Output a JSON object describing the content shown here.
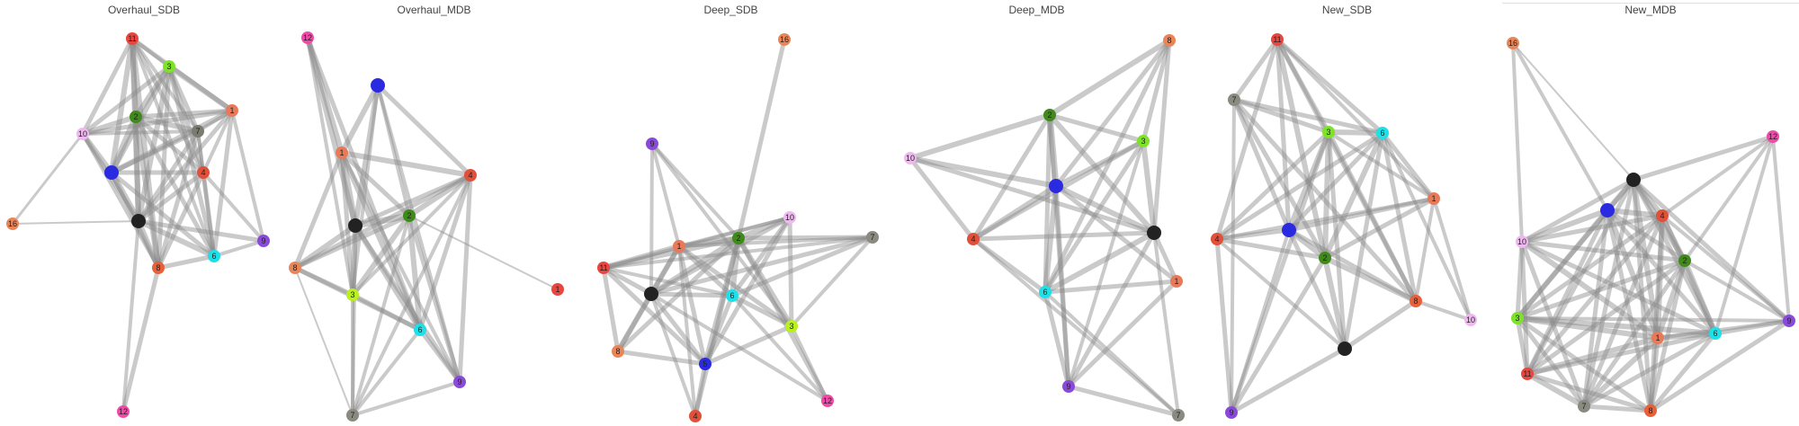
{
  "figure": {
    "panels": [
      {
        "title": "Overhaul_SDB",
        "nodes": [
          {
            "label": "11",
            "color": "#e8463f"
          },
          {
            "label": "3",
            "color": "#7fe22a"
          },
          {
            "label": "1",
            "color": "#e87a5a"
          },
          {
            "label": "2",
            "color": "#3f8a1a"
          },
          {
            "label": "7",
            "color": "#7b7b72"
          },
          {
            "label": "10",
            "color": "#f0b8f0"
          },
          {
            "label": "",
            "color": "#2a2ae0"
          },
          {
            "label": "4",
            "color": "#e0503a"
          },
          {
            "label": "16",
            "color": "#e8865a"
          },
          {
            "label": "",
            "color": "#222222"
          },
          {
            "label": "9",
            "color": "#8a4ad8"
          },
          {
            "label": "6",
            "color": "#1ee0e8"
          },
          {
            "label": "8",
            "color": "#e8603a"
          },
          {
            "label": "12",
            "color": "#f04aa8"
          }
        ]
      },
      {
        "title": "Overhaul_MDB",
        "nodes": [
          {
            "label": "12",
            "color": "#f04aa8"
          },
          {
            "label": "",
            "color": "#2a2ae0"
          },
          {
            "label": "1",
            "color": "#e87a5a"
          },
          {
            "label": "4",
            "color": "#e0503a"
          },
          {
            "label": "",
            "color": "#222222"
          },
          {
            "label": "2",
            "color": "#3f8a1a"
          },
          {
            "label": "8",
            "color": "#e8865a"
          },
          {
            "label": "3",
            "color": "#b8f020"
          },
          {
            "label": "1",
            "color": "#e8463f"
          },
          {
            "label": "6",
            "color": "#1ee0e8"
          },
          {
            "label": "9",
            "color": "#8a4ad8"
          },
          {
            "label": "7",
            "color": "#8a8a80"
          }
        ]
      },
      {
        "title": "Deep_SDB",
        "nodes": [
          {
            "label": "16",
            "color": "#e8865a"
          },
          {
            "label": "9",
            "color": "#8a4ad8"
          },
          {
            "label": "10",
            "color": "#f0b8f0"
          },
          {
            "label": "7",
            "color": "#8a8a80"
          },
          {
            "label": "1",
            "color": "#e87a5a"
          },
          {
            "label": "2",
            "color": "#3f8a1a"
          },
          {
            "label": "11",
            "color": "#e8463f"
          },
          {
            "label": "",
            "color": "#222222"
          },
          {
            "label": "6",
            "color": "#1ee0e8"
          },
          {
            "label": "3",
            "color": "#b8f020"
          },
          {
            "label": "8",
            "color": "#e8865a"
          },
          {
            "label": "5",
            "color": "#2a2ae0"
          },
          {
            "label": "12",
            "color": "#f04aa8"
          },
          {
            "label": "4",
            "color": "#e0503a"
          }
        ]
      },
      {
        "title": "Deep_MDB",
        "nodes": [
          {
            "label": "8",
            "color": "#e8865a"
          },
          {
            "label": "2",
            "color": "#3f8a1a"
          },
          {
            "label": "3",
            "color": "#7fe22a"
          },
          {
            "label": "10",
            "color": "#f0b8f0"
          },
          {
            "label": "",
            "color": "#2a2ae0"
          },
          {
            "label": "4",
            "color": "#e0503a"
          },
          {
            "label": "",
            "color": "#222222"
          },
          {
            "label": "1",
            "color": "#e87a5a"
          },
          {
            "label": "6",
            "color": "#1ee0e8"
          },
          {
            "label": "9",
            "color": "#8a4ad8"
          },
          {
            "label": "7",
            "color": "#8a8a80"
          }
        ]
      },
      {
        "title": "New_SDB",
        "nodes": [
          {
            "label": "11",
            "color": "#e8463f"
          },
          {
            "label": "7",
            "color": "#8a8a80"
          },
          {
            "label": "3",
            "color": "#7fe22a"
          },
          {
            "label": "6",
            "color": "#1ee0e8"
          },
          {
            "label": "1",
            "color": "#e87a5a"
          },
          {
            "label": "4",
            "color": "#e0503a"
          },
          {
            "label": "",
            "color": "#2a2ae0"
          },
          {
            "label": "2",
            "color": "#3f8a1a"
          },
          {
            "label": "8",
            "color": "#e8603a"
          },
          {
            "label": "10",
            "color": "#f0b8f0"
          },
          {
            "label": "",
            "color": "#222222"
          },
          {
            "label": "9",
            "color": "#8a4ad8"
          }
        ]
      },
      {
        "title": "New_MDB",
        "nodes": [
          {
            "label": "16",
            "color": "#e8865a"
          },
          {
            "label": "12",
            "color": "#f04aa8"
          },
          {
            "label": "",
            "color": "#222222"
          },
          {
            "label": "",
            "color": "#2a2ae0"
          },
          {
            "label": "4",
            "color": "#e0503a"
          },
          {
            "label": "10",
            "color": "#f0b8f0"
          },
          {
            "label": "2",
            "color": "#3f8a1a"
          },
          {
            "label": "3",
            "color": "#7fe22a"
          },
          {
            "label": "1",
            "color": "#e87a5a"
          },
          {
            "label": "6",
            "color": "#1ee0e8"
          },
          {
            "label": "9",
            "color": "#8a4ad8"
          },
          {
            "label": "11",
            "color": "#e8463f"
          },
          {
            "label": "7",
            "color": "#8a8a80"
          },
          {
            "label": "8",
            "color": "#e8603a"
          }
        ]
      }
    ]
  }
}
